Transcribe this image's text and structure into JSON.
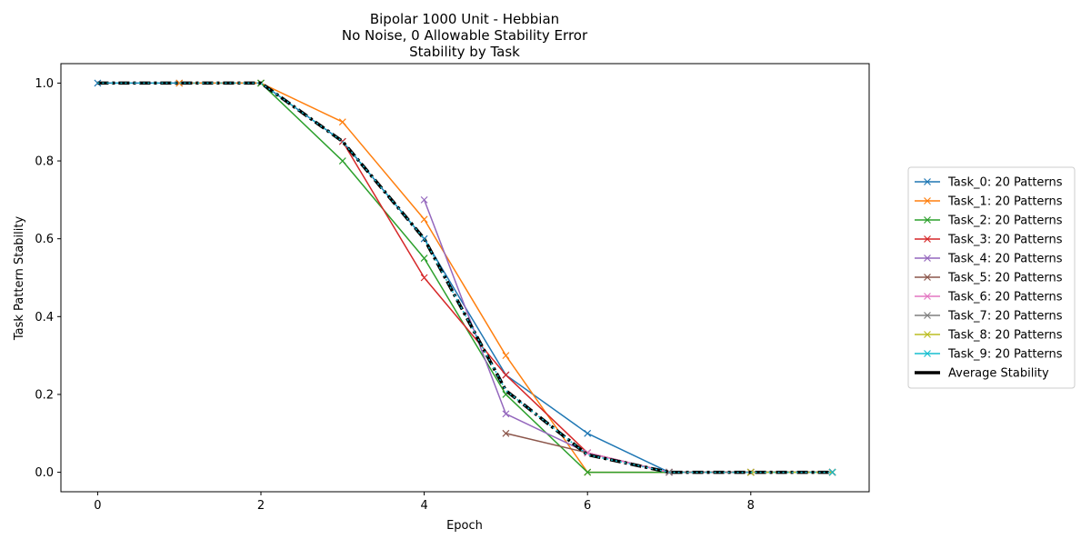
{
  "chart_data": {
    "type": "line",
    "title_lines": [
      "Bipolar 1000 Unit - Hebbian",
      "No Noise, 0 Allowable Stability Error",
      "Stability by Task"
    ],
    "xlabel": "Epoch",
    "ylabel": "Task Pattern Stability",
    "xlim": [
      -0.45,
      9.45
    ],
    "ylim": [
      -0.05,
      1.05
    ],
    "xticks": [
      0,
      2,
      4,
      6,
      8
    ],
    "yticks": [
      0.0,
      0.2,
      0.4,
      0.6,
      0.8,
      1.0
    ],
    "xtick_labels": [
      "0",
      "2",
      "4",
      "6",
      "8"
    ],
    "ytick_labels": [
      "0.0",
      "0.2",
      "0.4",
      "0.6",
      "0.8",
      "1.0"
    ],
    "grid": false,
    "legend_position": "right, outside plot",
    "series": [
      {
        "name": "Task_0: 20 Patterns",
        "color": "#1f77b4",
        "marker": "x",
        "x": [
          0,
          1,
          2,
          3,
          4,
          5,
          6,
          7,
          8,
          9
        ],
        "y": [
          1.0,
          1.0,
          1.0,
          0.85,
          0.6,
          0.25,
          0.1,
          0.0,
          0.0,
          0.0
        ]
      },
      {
        "name": "Task_1: 20 Patterns",
        "color": "#ff7f0e",
        "marker": "x",
        "x": [
          1,
          2,
          3,
          4,
          5,
          6,
          7,
          8,
          9
        ],
        "y": [
          1.0,
          1.0,
          0.9,
          0.65,
          0.3,
          0.0,
          0.0,
          0.0,
          0.0
        ]
      },
      {
        "name": "Task_2: 20 Patterns",
        "color": "#2ca02c",
        "marker": "x",
        "x": [
          2,
          3,
          4,
          5,
          6,
          7,
          8,
          9
        ],
        "y": [
          1.0,
          0.8,
          0.55,
          0.2,
          0.0,
          0.0,
          0.0,
          0.0
        ]
      },
      {
        "name": "Task_3: 20 Patterns",
        "color": "#d62728",
        "marker": "x",
        "x": [
          3,
          4,
          5,
          6,
          7,
          8,
          9
        ],
        "y": [
          0.85,
          0.5,
          0.25,
          0.05,
          0.0,
          0.0,
          0.0
        ]
      },
      {
        "name": "Task_4: 20 Patterns",
        "color": "#9467bd",
        "marker": "x",
        "x": [
          4,
          5,
          6,
          7,
          8,
          9
        ],
        "y": [
          0.7,
          0.15,
          0.05,
          0.0,
          0.0,
          0.0
        ]
      },
      {
        "name": "Task_5: 20 Patterns",
        "color": "#8c564b",
        "marker": "x",
        "x": [
          5,
          6,
          7,
          8,
          9
        ],
        "y": [
          0.1,
          0.05,
          0.0,
          0.0,
          0.0
        ]
      },
      {
        "name": "Task_6: 20 Patterns",
        "color": "#e377c2",
        "marker": "x",
        "x": [
          6,
          7,
          8,
          9
        ],
        "y": [
          0.05,
          0.0,
          0.0,
          0.0
        ]
      },
      {
        "name": "Task_7: 20 Patterns",
        "color": "#7f7f7f",
        "marker": "x",
        "x": [
          7,
          8,
          9
        ],
        "y": [
          0.0,
          0.0,
          0.0
        ]
      },
      {
        "name": "Task_8: 20 Patterns",
        "color": "#bcbd22",
        "marker": "x",
        "x": [
          8,
          9
        ],
        "y": [
          0.0,
          0.0
        ]
      },
      {
        "name": "Task_9: 20 Patterns",
        "color": "#17becf",
        "marker": "x",
        "x": [
          9
        ],
        "y": [
          0.0
        ]
      }
    ],
    "average": {
      "name": "Average Stability",
      "color": "#000000",
      "style": "dash-dot",
      "x": [
        0,
        1,
        2,
        3,
        4,
        5,
        6,
        7,
        8,
        9
      ],
      "y": [
        1.0,
        1.0,
        1.0,
        0.85,
        0.6,
        0.21,
        0.045,
        0.0,
        0.0,
        0.0
      ]
    },
    "overlay_line": {
      "color": "#17becf",
      "style": "dotted",
      "x": [
        0,
        1,
        2,
        3,
        4,
        5,
        6,
        7,
        8,
        9
      ],
      "y": [
        1.0,
        1.0,
        1.0,
        0.85,
        0.6,
        0.21,
        0.045,
        0.0,
        0.0,
        0.0
      ]
    }
  }
}
